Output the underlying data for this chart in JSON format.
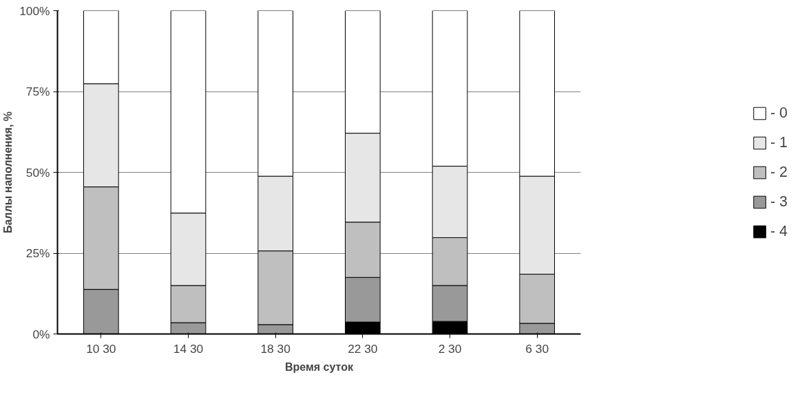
{
  "chart_data": {
    "type": "bar",
    "stacked": true,
    "xlabel": "Время суток",
    "ylabel": "Баллы наполнения, %",
    "categories": [
      "10 30",
      "14 30",
      "18 30",
      "22 30",
      "2 30",
      "6 30"
    ],
    "ylim": [
      0,
      100
    ],
    "yticks": [
      {
        "value": 0,
        "label": "0%"
      },
      {
        "value": 25,
        "label": "25%"
      },
      {
        "value": 50,
        "label": "50%"
      },
      {
        "value": 75,
        "label": "75%"
      },
      {
        "value": 100,
        "label": "100%"
      }
    ],
    "grid": "y",
    "legend": "right",
    "series": [
      {
        "name": "- 4",
        "color": "#000000",
        "values": [
          0,
          0,
          0,
          3.7,
          3.9,
          0
        ]
      },
      {
        "name": "- 3",
        "color": "#999999",
        "values": [
          13.8,
          3.5,
          2.9,
          13.8,
          11.1,
          3.3
        ]
      },
      {
        "name": "- 2",
        "color": "#bfbfbf",
        "values": [
          31.7,
          11.5,
          22.8,
          17.1,
          14.8,
          15.2
        ]
      },
      {
        "name": "- 1",
        "color": "#e6e6e6",
        "values": [
          31.9,
          22.4,
          23.1,
          27.5,
          22.1,
          30.3
        ]
      },
      {
        "name": "- 0",
        "color": "#ffffff",
        "values": [
          22.6,
          62.6,
          51.2,
          37.9,
          48.1,
          51.2
        ]
      }
    ]
  }
}
